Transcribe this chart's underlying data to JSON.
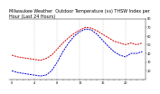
{
  "title": "Milwaukee Weather  Outdoor Temperature (vs) THSW Index per Hour (Last 24 Hours)",
  "hours": [
    0,
    1,
    2,
    3,
    4,
    5,
    6,
    7,
    8,
    9,
    10,
    11,
    12,
    13,
    14,
    15,
    16,
    17,
    18,
    19,
    20,
    21,
    22,
    23
  ],
  "temp": [
    38,
    36,
    35,
    34,
    33,
    32,
    34,
    38,
    45,
    52,
    58,
    63,
    67,
    70,
    69,
    66,
    62,
    58,
    54,
    52,
    50,
    52,
    50,
    52
  ],
  "thsw": [
    20,
    18,
    17,
    16,
    15,
    14,
    15,
    20,
    30,
    42,
    52,
    60,
    65,
    68,
    67,
    62,
    55,
    48,
    42,
    38,
    36,
    40,
    40,
    42
  ],
  "temp_color": "#cc0000",
  "thsw_color": "#0000cc",
  "background": "#ffffff",
  "grid_color": "#aaaaaa",
  "ylim_min": 10,
  "ylim_max": 80,
  "yticks": [
    20,
    30,
    40,
    50,
    60,
    70,
    80
  ],
  "ylabel_fontsize": 4,
  "title_fontsize": 3.5
}
